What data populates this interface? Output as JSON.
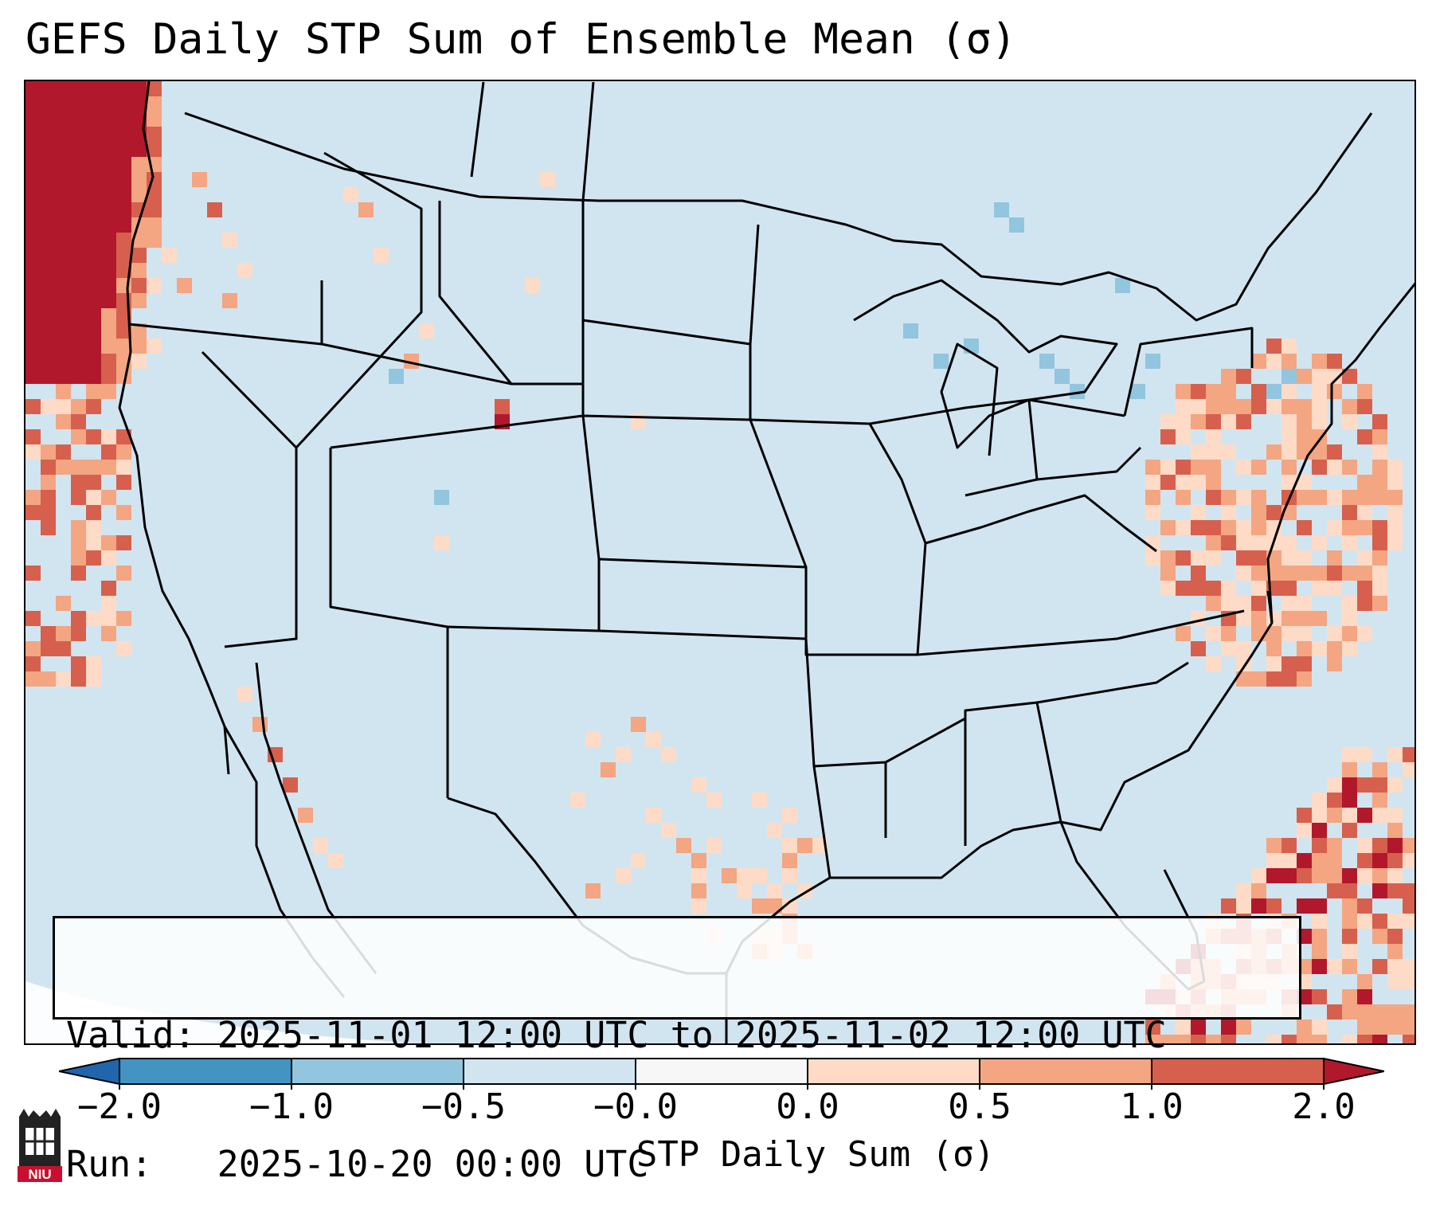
{
  "title": "GEFS Daily STP Sum of Ensemble Mean (σ)",
  "info": {
    "valid": "Valid: 2025-11-01 12:00 UTC to 2025-11-02 12:00 UTC",
    "run": "Run:   2025-10-20 00:00 UTC"
  },
  "colorbar": {
    "label": "STP Daily Sum (σ)",
    "ticks": [
      "−2.0",
      "−1.0",
      "−0.5",
      "−0.0",
      "0.0",
      "0.5",
      "1.0",
      "2.0"
    ],
    "colors": {
      "below": "#2166ac",
      "bins": [
        "#4393c3",
        "#92c5de",
        "#d1e5f0",
        "#f7f7f7",
        "#fddbc7",
        "#f4a582",
        "#d6604d"
      ],
      "above": "#b2182b"
    }
  },
  "map": {
    "region": "Continental United States",
    "background_value_color": "#d1e5f0",
    "state_line_color": "#000000"
  },
  "logo": {
    "text": "NIU"
  }
}
